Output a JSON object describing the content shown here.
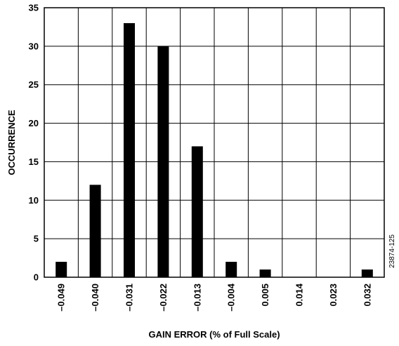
{
  "chart_data": {
    "type": "bar",
    "categories": [
      "–0.049",
      "–0.040",
      "–0.031",
      "–0.022",
      "–0.013",
      "–0.004",
      "0.005",
      "0.014",
      "0.023",
      "0.032"
    ],
    "values": [
      2,
      12,
      33,
      30,
      17,
      2,
      1,
      0,
      0,
      1
    ],
    "xlabel": "GAIN ERROR (% of Full Scale)",
    "ylabel": "OCCURRENCE",
    "ylim": [
      0,
      35
    ],
    "yticks": [
      "0",
      "5",
      "10",
      "15",
      "20",
      "25",
      "30",
      "35"
    ],
    "grid": true,
    "bar_color": "#000000",
    "figure_id": "23874-125"
  }
}
